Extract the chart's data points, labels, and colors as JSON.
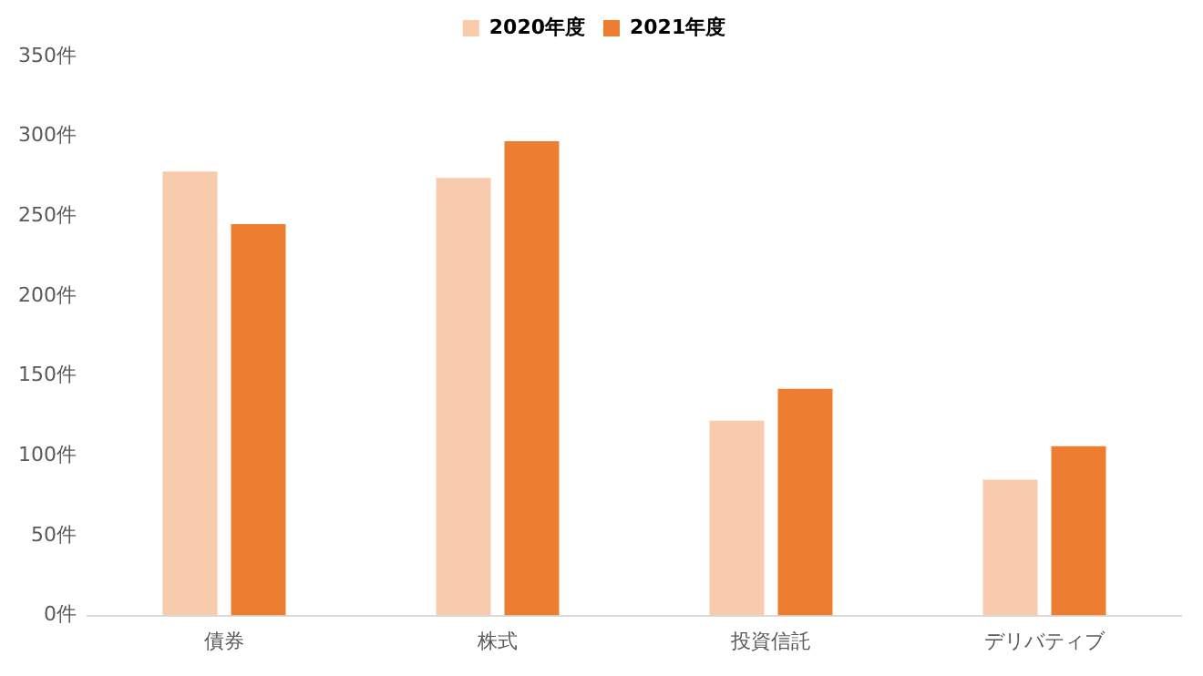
{
  "chart_data": {
    "type": "bar",
    "categories": [
      "債券",
      "株式",
      "投資信託",
      "デリバティブ"
    ],
    "series": [
      {
        "name": "2020年度",
        "color": "#f8cbad",
        "values": [
          278,
          274,
          122,
          85
        ]
      },
      {
        "name": "2021年度",
        "color": "#ed7d31",
        "values": [
          245,
          297,
          142,
          106
        ]
      }
    ],
    "ylim": [
      0,
      350
    ],
    "yticks": [
      {
        "value": 0,
        "label": "0件"
      },
      {
        "value": 50,
        "label": "50件"
      },
      {
        "value": 100,
        "label": "100件"
      },
      {
        "value": 150,
        "label": "150件"
      },
      {
        "value": 200,
        "label": "200件"
      },
      {
        "value": 250,
        "label": "250件"
      },
      {
        "value": 300,
        "label": "300件"
      },
      {
        "value": 350,
        "label": "350件"
      }
    ],
    "grid": false,
    "legend": "top"
  }
}
